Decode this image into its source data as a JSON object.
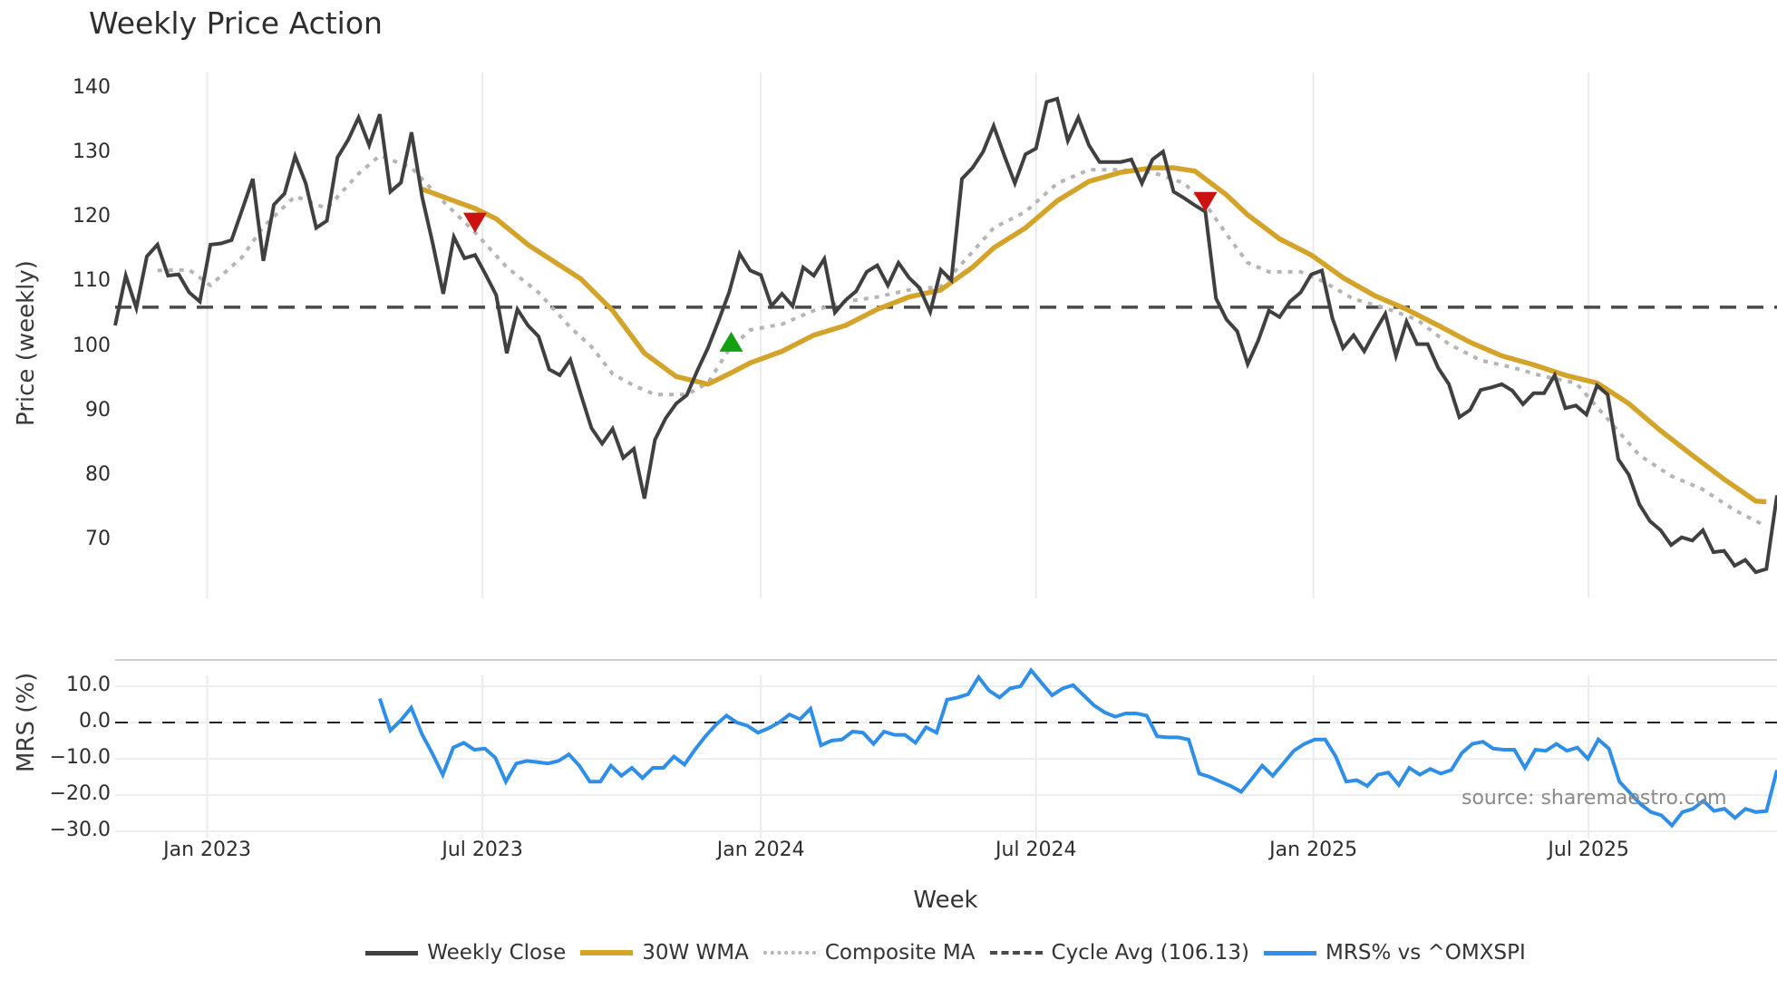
{
  "title": "Weekly Price Action",
  "source_note": "source: sharemaestro.com",
  "x_axis": {
    "label": "Week",
    "ticks": [
      {
        "label": "Jan 2023",
        "index": 8.7
      },
      {
        "label": "Jul 2023",
        "index": 34.7
      },
      {
        "label": "Jan 2024",
        "index": 61
      },
      {
        "label": "Jul 2024",
        "index": 87
      },
      {
        "label": "Jan 2025",
        "index": 113.2
      },
      {
        "label": "Jul 2025",
        "index": 139.2
      }
    ]
  },
  "price_axis": {
    "label": "Price (weekly)",
    "ticks": [
      "140",
      "130",
      "120",
      "110",
      "100",
      "90",
      "80",
      "70"
    ],
    "tick_values": [
      140,
      130,
      120,
      110,
      100,
      90,
      80,
      70
    ]
  },
  "mrs_axis": {
    "label": "MRS (%)",
    "ticks": [
      "10.0",
      "0.0",
      "−10.0",
      "−20.0",
      "−30.0"
    ],
    "tick_values": [
      10,
      0,
      -10,
      -20,
      -30
    ]
  },
  "legend": [
    {
      "label": "Weekly Close",
      "color": "#404040",
      "style": "solid"
    },
    {
      "label": "30W WMA",
      "color": "#d4a42a",
      "style": "solid"
    },
    {
      "label": "Composite MA",
      "color": "#b5b5b5",
      "style": "dotted"
    },
    {
      "label": "Cycle Avg (106.13)",
      "color": "#4a4a4a",
      "style": "dashed"
    },
    {
      "label": "MRS% vs ^OMXSPI",
      "color": "#2f8fe8",
      "style": "solid"
    }
  ],
  "colors": {
    "close": "#404040",
    "wma": "#d4a42a",
    "composite": "#b5b5b5",
    "cycle": "#4a4a4a",
    "mrs": "#2f8fe8",
    "sell_marker": "#cc1111",
    "buy_marker": "#11a011",
    "grid": "#e8ecf0"
  },
  "chart_data": [
    {
      "type": "line",
      "title": "Weekly Price Action",
      "xlabel": "Week",
      "ylabel": "Price (weekly)",
      "ylim": [
        60,
        142
      ],
      "x_range": [
        "Nov 2022",
        "Oct 2025"
      ],
      "grid": "vertical",
      "legend_position": "bottom",
      "series": [
        {
          "name": "Weekly Close",
          "values": [
            103.3,
            111,
            106,
            114,
            115.8,
            111,
            111.2,
            108.4,
            107,
            115.8,
            116,
            116.5,
            121.2,
            126,
            113.3,
            122,
            123.7,
            129.5,
            125.3,
            118.4,
            119.5,
            129.3,
            132,
            135.5,
            131.2,
            136,
            124,
            125.4,
            133.2,
            123.2,
            116,
            108.2,
            117,
            113.7,
            114.2,
            111.2,
            108,
            99,
            105.8,
            103.3,
            101.6,
            96.5,
            95.6,
            98,
            92.6,
            87.4,
            85,
            87.3,
            82.8,
            84.2,
            76.5,
            85.6,
            88.9,
            91.2,
            92.5,
            96.3,
            99.8,
            104,
            108.4,
            114.4,
            111.8,
            111.1,
            106.3,
            108.2,
            106.3,
            112.3,
            111,
            113.6,
            105.3,
            107.2,
            108.6,
            111.6,
            112.6,
            109.5,
            113,
            110.7,
            109.1,
            105.4,
            111.9,
            110.3,
            126,
            127.7,
            130.2,
            134.2,
            129.6,
            125.3,
            129.8,
            130.7,
            137.9,
            138.4,
            131.9,
            135.5,
            131.2,
            128.6,
            128.6,
            128.6,
            129,
            125.3,
            129,
            130.2,
            124,
            123,
            121.9,
            120.9,
            107.5,
            104.2,
            102.4,
            97.3,
            101,
            105.6,
            104.6,
            107,
            108.4,
            111.2,
            111.8,
            104.4,
            99.8,
            101.8,
            99.3,
            102.3,
            105.1,
            98.6,
            103.9,
            100.4,
            100.4,
            96.7,
            94.2,
            89.1,
            90.2,
            93.3,
            93.7,
            94.2,
            93.2,
            91.1,
            92.8,
            92.8,
            95.6,
            90.5,
            90.9,
            89.5,
            94,
            92.6,
            82.6,
            80.2,
            75.6,
            73,
            71.6,
            69.3,
            70.5,
            70,
            71.6,
            68.2,
            68.4,
            66.1,
            67,
            65.1,
            65.6,
            77
          ]
        },
        {
          "name": "30W WMA",
          "points": [
            [
              29,
              124.4
            ],
            [
              31,
              123.2
            ],
            [
              34,
              121.4
            ],
            [
              36,
              119.8
            ],
            [
              39,
              115.8
            ],
            [
              44,
              110.5
            ],
            [
              47,
              105.6
            ],
            [
              50,
              99
            ],
            [
              53,
              95.4
            ],
            [
              56,
              94.2
            ],
            [
              58,
              95.8
            ],
            [
              60,
              97.5
            ],
            [
              63,
              99.3
            ],
            [
              66,
              101.8
            ],
            [
              69,
              103.3
            ],
            [
              72,
              105.8
            ],
            [
              75,
              107.7
            ],
            [
              78,
              108.8
            ],
            [
              81,
              112.3
            ],
            [
              83,
              115.3
            ],
            [
              86,
              118.4
            ],
            [
              89,
              122.6
            ],
            [
              92,
              125.6
            ],
            [
              95,
              127
            ],
            [
              98,
              127.7
            ],
            [
              100,
              127.7
            ],
            [
              102,
              127.2
            ],
            [
              105,
              123.5
            ],
            [
              107,
              120.4
            ],
            [
              110,
              116.7
            ],
            [
              113,
              114.2
            ],
            [
              116,
              110.7
            ],
            [
              119,
              107.9
            ],
            [
              122,
              105.8
            ],
            [
              125,
              103.3
            ],
            [
              128,
              100.7
            ],
            [
              131,
              98.6
            ],
            [
              134,
              97.2
            ],
            [
              137,
              95.6
            ],
            [
              140,
              94.4
            ],
            [
              143,
              91.2
            ],
            [
              146,
              87
            ],
            [
              149,
              83.2
            ],
            [
              152,
              79.5
            ],
            [
              155,
              76.1
            ],
            [
              156,
              76
            ]
          ]
        },
        {
          "name": "Composite MA",
          "points": [
            [
              4,
              111.8
            ],
            [
              7,
              111.9
            ],
            [
              9,
              109.5
            ],
            [
              12,
              113.9
            ],
            [
              14,
              118.6
            ],
            [
              17,
              123.3
            ],
            [
              20,
              121.4
            ],
            [
              23,
              126.8
            ],
            [
              25,
              129.6
            ],
            [
              28,
              127.7
            ],
            [
              31,
              122.5
            ],
            [
              34,
              117.7
            ],
            [
              37,
              112.3
            ],
            [
              40,
              108.4
            ],
            [
              43,
              103
            ],
            [
              45,
              100
            ],
            [
              47,
              95.8
            ],
            [
              49,
              94
            ],
            [
              51,
              92.6
            ],
            [
              54,
              92.6
            ],
            [
              56,
              94.4
            ],
            [
              58,
              99.6
            ],
            [
              60,
              102.6
            ],
            [
              63,
              103.5
            ],
            [
              66,
              105.6
            ],
            [
              69,
              107
            ],
            [
              72,
              107.7
            ],
            [
              75,
              108.8
            ],
            [
              78,
              109.3
            ],
            [
              81,
              114.7
            ],
            [
              83,
              118.4
            ],
            [
              86,
              120.9
            ],
            [
              89,
              125.3
            ],
            [
              92,
              127.4
            ],
            [
              95,
              127.4
            ],
            [
              98,
              127
            ],
            [
              101,
              125.3
            ],
            [
              103,
              122.1
            ],
            [
              105,
              117.4
            ],
            [
              107,
              113
            ],
            [
              109,
              111.6
            ],
            [
              112,
              111.6
            ],
            [
              114,
              110.2
            ],
            [
              117,
              107.4
            ],
            [
              120,
              106
            ],
            [
              123,
              104.2
            ],
            [
              126,
              100.4
            ],
            [
              129,
              97.9
            ],
            [
              132,
              96.8
            ],
            [
              135,
              95.4
            ],
            [
              138,
              94.4
            ],
            [
              141,
              88.8
            ],
            [
              144,
              83.2
            ],
            [
              147,
              80
            ],
            [
              150,
              77.9
            ],
            [
              153,
              74.7
            ],
            [
              155.5,
              72.6
            ]
          ]
        },
        {
          "name": "Cycle Avg (106.13)",
          "constant": 106.13
        }
      ],
      "markers": [
        {
          "type": "sell",
          "shape": "triangle-down",
          "index": 34,
          "value": 119.3
        },
        {
          "type": "buy",
          "shape": "triangle-up",
          "index": 58.2,
          "value": 100.7
        },
        {
          "type": "sell",
          "shape": "triangle-down",
          "index": 103,
          "value": 122.5
        }
      ]
    },
    {
      "type": "line",
      "title": "",
      "ylabel": "MRS (%)",
      "ylim": [
        -32,
        16
      ],
      "reference_line": 0,
      "series": [
        {
          "name": "MRS% vs ^OMXSPI",
          "start_index": 25,
          "values": [
            6.6,
            -2.2,
            0.6,
            4.1,
            -3.1,
            -8.5,
            -14.4,
            -6.9,
            -5.6,
            -7.5,
            -7.2,
            -9.7,
            -16.3,
            -11.3,
            -10.6,
            -10.9,
            -11.3,
            -10.6,
            -8.8,
            -11.9,
            -16.3,
            -16.3,
            -11.9,
            -14.7,
            -12.5,
            -15.3,
            -12.5,
            -12.5,
            -9.4,
            -11.6,
            -7.5,
            -3.8,
            -0.6,
            1.9,
            0,
            -0.9,
            -2.8,
            -1.6,
            0,
            2.2,
            0.9,
            3.8,
            -6.3,
            -5,
            -4.7,
            -2.5,
            -2.8,
            -5.9,
            -2.5,
            -3.4,
            -3.4,
            -5.6,
            -1.3,
            -2.8,
            6.3,
            6.9,
            7.8,
            12.5,
            8.8,
            6.9,
            9.4,
            10,
            14.4,
            10.9,
            7.5,
            9.4,
            10.3,
            7.5,
            4.7,
            2.8,
            1.6,
            2.5,
            2.5,
            1.9,
            -3.8,
            -4.1,
            -4.1,
            -4.7,
            -14.1,
            -15,
            -16.3,
            -17.5,
            -19.1,
            -15.6,
            -11.9,
            -14.7,
            -11.3,
            -7.8,
            -5.9,
            -4.7,
            -4.7,
            -9.4,
            -16.3,
            -15.9,
            -17.5,
            -14.4,
            -13.8,
            -17.2,
            -12.5,
            -14.4,
            -12.8,
            -14.1,
            -13.1,
            -8.4,
            -5.9,
            -5.3,
            -7.2,
            -7.5,
            -7.5,
            -12.5,
            -7.5,
            -7.8,
            -5.9,
            -7.8,
            -6.9,
            -10,
            -4.7,
            -7.2,
            -16.3,
            -19.4,
            -22.5,
            -24.7,
            -25.6,
            -28.4,
            -24.7,
            -23.8,
            -21.6,
            -24.4,
            -23.8,
            -26.3,
            -23.8,
            -24.7,
            -24.4,
            -13.1
          ]
        }
      ]
    }
  ]
}
